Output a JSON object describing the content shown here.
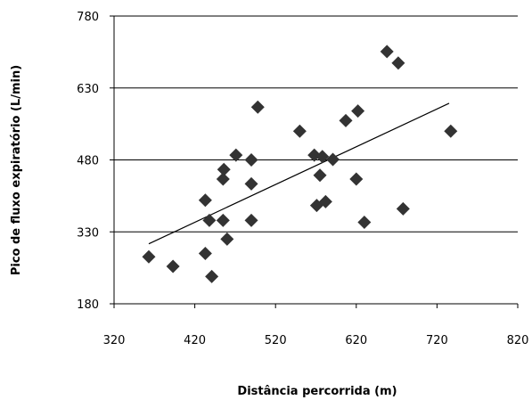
{
  "chart_data": {
    "type": "scatter",
    "xlabel": "Distância percorrida (m)",
    "ylabel": "Pico de fluxo expiratório (L/min)",
    "xlim": [
      320,
      820
    ],
    "ylim": [
      180,
      780
    ],
    "x_ticks": [
      "320",
      "420",
      "520",
      "620",
      "720",
      "820"
    ],
    "y_ticks": [
      "180",
      "330",
      "480",
      "630",
      "780"
    ],
    "grid": "horizontal",
    "marker": "diamond",
    "marker_color": "#333333",
    "series": [
      {
        "points": [
          {
            "x": 363,
            "y": 278
          },
          {
            "x": 393,
            "y": 258
          },
          {
            "x": 433,
            "y": 285
          },
          {
            "x": 433,
            "y": 396
          },
          {
            "x": 438,
            "y": 354
          },
          {
            "x": 441,
            "y": 237
          },
          {
            "x": 455,
            "y": 354
          },
          {
            "x": 455,
            "y": 440
          },
          {
            "x": 456,
            "y": 460
          },
          {
            "x": 460,
            "y": 315
          },
          {
            "x": 471,
            "y": 490
          },
          {
            "x": 490,
            "y": 354
          },
          {
            "x": 490,
            "y": 480
          },
          {
            "x": 490,
            "y": 430
          },
          {
            "x": 498,
            "y": 590
          },
          {
            "x": 550,
            "y": 540
          },
          {
            "x": 568,
            "y": 490
          },
          {
            "x": 571,
            "y": 385
          },
          {
            "x": 575,
            "y": 448
          },
          {
            "x": 578,
            "y": 487
          },
          {
            "x": 582,
            "y": 393
          },
          {
            "x": 591,
            "y": 481
          },
          {
            "x": 607,
            "y": 562
          },
          {
            "x": 620,
            "y": 440
          },
          {
            "x": 622,
            "y": 582
          },
          {
            "x": 630,
            "y": 350
          },
          {
            "x": 658,
            "y": 706
          },
          {
            "x": 672,
            "y": 682
          },
          {
            "x": 678,
            "y": 378
          },
          {
            "x": 737,
            "y": 540
          }
        ]
      }
    ],
    "trendline": {
      "x": [
        363,
        735
      ],
      "y": [
        305,
        598
      ]
    }
  }
}
